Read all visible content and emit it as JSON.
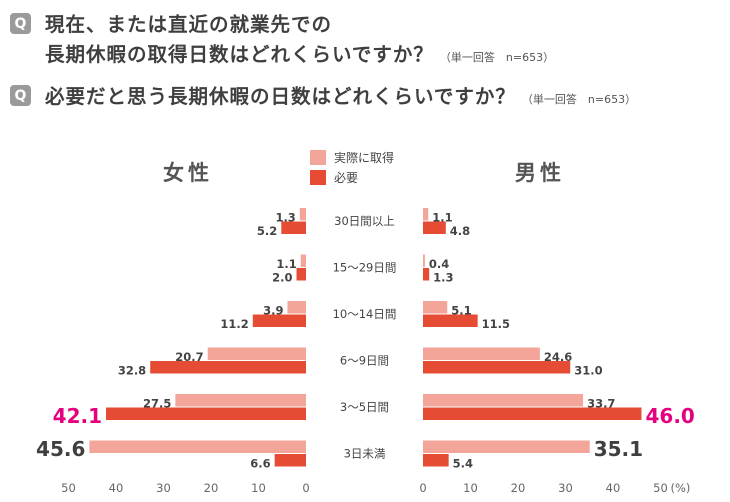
{
  "questions": [
    {
      "badge": "Q",
      "line1": "現在、または直近の就業先での",
      "line2": "長期休暇の取得日数はどれくらいですか？",
      "note": "（単一回答　n=653）"
    },
    {
      "badge": "Q",
      "line1": "必要だと思う長期休暇の日数はどれくらいですか？",
      "note": "（単一回答　n=653）"
    }
  ],
  "chart_data": {
    "type": "bar",
    "orientation": "horizontal-butterfly",
    "categories": [
      "30日間以上",
      "15～29日間",
      "10～14日間",
      "6～9日間",
      "3～5日間",
      "3日未満"
    ],
    "panels": [
      {
        "title": "女性",
        "series": [
          {
            "name": "実際に取得",
            "values": [
              1.3,
              1.1,
              3.9,
              20.7,
              27.5,
              45.6
            ]
          },
          {
            "name": "必要",
            "values": [
              5.2,
              2.0,
              11.2,
              32.8,
              42.1,
              6.6
            ]
          }
        ]
      },
      {
        "title": "男性",
        "series": [
          {
            "name": "実際に取得",
            "values": [
              1.1,
              0.4,
              5.1,
              24.6,
              33.7,
              35.1
            ]
          },
          {
            "name": "必要",
            "values": [
              4.8,
              1.3,
              11.5,
              31.0,
              46.0,
              5.4
            ]
          }
        ]
      }
    ],
    "value_labels": {
      "女性": [
        [
          "1.3",
          "5.2"
        ],
        [
          "1.1",
          "2.0"
        ],
        [
          "3.9",
          "11.2"
        ],
        [
          "20.7",
          "32.8"
        ],
        [
          "27.5",
          "42.1"
        ],
        [
          "45.6",
          "6.6"
        ]
      ],
      "男性": [
        [
          "1.1",
          "4.8"
        ],
        [
          "0.4",
          "1.3"
        ],
        [
          "5.1",
          "11.5"
        ],
        [
          "24.6",
          "31.0"
        ],
        [
          "33.7",
          "46.0"
        ],
        [
          "35.1",
          "5.4"
        ]
      ]
    },
    "xlim": [
      0,
      50
    ],
    "ticks": [
      "0",
      "10",
      "20",
      "30",
      "40",
      "50"
    ],
    "unit": "(%)",
    "legend": [
      "実際に取得",
      "必要"
    ],
    "legend_position": "top-center",
    "grid": false,
    "colors": {
      "実際に取得": "#f2a598",
      "必要": "#e64c34",
      "highlight": "#e4007f",
      "emphasis": "#3f3f3f"
    }
  }
}
